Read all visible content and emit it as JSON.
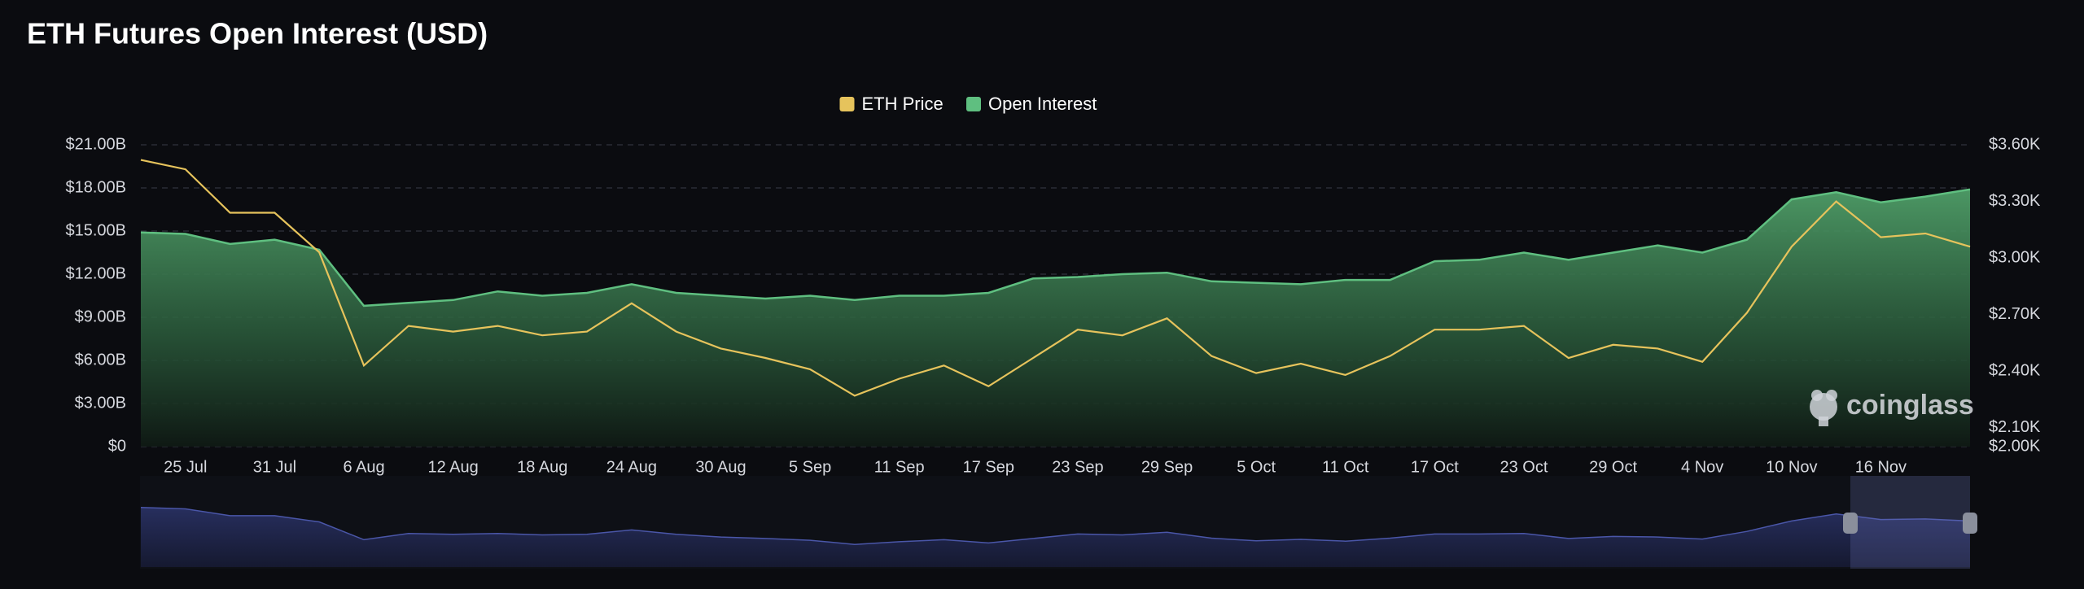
{
  "chart_data": {
    "type": "area-line",
    "title": "ETH Futures Open Interest (USD)",
    "watermark": "coinglass",
    "categories": [
      null,
      "25 Jul",
      null,
      "31 Jul",
      null,
      "6 Aug",
      null,
      "12 Aug",
      null,
      "18 Aug",
      null,
      "24 Aug",
      null,
      "30 Aug",
      null,
      "5 Sep",
      null,
      "11 Sep",
      null,
      "17 Sep",
      null,
      "23 Sep",
      null,
      "29 Sep",
      null,
      "5 Oct",
      null,
      "11 Oct",
      null,
      "17 Oct",
      null,
      "23 Oct",
      null,
      "29 Oct",
      null,
      "4 Nov",
      null,
      "10 Nov",
      null,
      "16 Nov",
      null,
      null
    ],
    "series": [
      {
        "name": "ETH Price",
        "color": "#e6c35c",
        "axis": "y2",
        "values": [
          3.52,
          3.47,
          3.24,
          3.24,
          3.03,
          2.43,
          2.64,
          2.61,
          2.64,
          2.59,
          2.61,
          2.76,
          2.61,
          2.52,
          2.47,
          2.41,
          2.27,
          2.36,
          2.43,
          2.32,
          2.47,
          2.62,
          2.59,
          2.68,
          2.48,
          2.39,
          2.44,
          2.38,
          2.48,
          2.62,
          2.62,
          2.64,
          2.47,
          2.54,
          2.52,
          2.45,
          2.71,
          3.06,
          3.3,
          3.11,
          3.13,
          3.06
        ]
      },
      {
        "name": "Open Interest",
        "color": "#5fbf80",
        "axis": "y",
        "values": [
          14.9,
          14.8,
          14.1,
          14.4,
          13.7,
          9.8,
          10.0,
          10.2,
          10.8,
          10.5,
          10.7,
          11.3,
          10.7,
          10.5,
          10.3,
          10.5,
          10.2,
          10.5,
          10.5,
          10.7,
          11.7,
          11.8,
          12.0,
          12.1,
          11.5,
          11.4,
          11.3,
          11.6,
          11.6,
          12.9,
          13.0,
          13.5,
          13.0,
          13.5,
          14.0,
          13.5,
          14.4,
          17.2,
          17.7,
          17.0,
          17.4,
          17.9
        ]
      }
    ],
    "ylim": [
      0,
      21
    ],
    "yticks": [
      {
        "value": 0,
        "label": "$0"
      },
      {
        "value": 3,
        "label": "$3.00B"
      },
      {
        "value": 6,
        "label": "$6.00B"
      },
      {
        "value": 9,
        "label": "$9.00B"
      },
      {
        "value": 12,
        "label": "$12.00B"
      },
      {
        "value": 15,
        "label": "$15.00B"
      },
      {
        "value": 18,
        "label": "$18.00B"
      },
      {
        "value": 21,
        "label": "$21.00B"
      }
    ],
    "y2lim": [
      2.0,
      3.6
    ],
    "y2ticks": [
      {
        "value": 2.0,
        "label": "$2.00K"
      },
      {
        "value": 2.1,
        "label": "$2.10K"
      },
      {
        "value": 2.4,
        "label": "$2.40K"
      },
      {
        "value": 2.7,
        "label": "$2.70K"
      },
      {
        "value": 3.0,
        "label": "$3.00K"
      },
      {
        "value": 3.3,
        "label": "$3.30K"
      },
      {
        "value": 3.6,
        "label": "$3.60K"
      }
    ],
    "grid": true,
    "legend": "top"
  }
}
